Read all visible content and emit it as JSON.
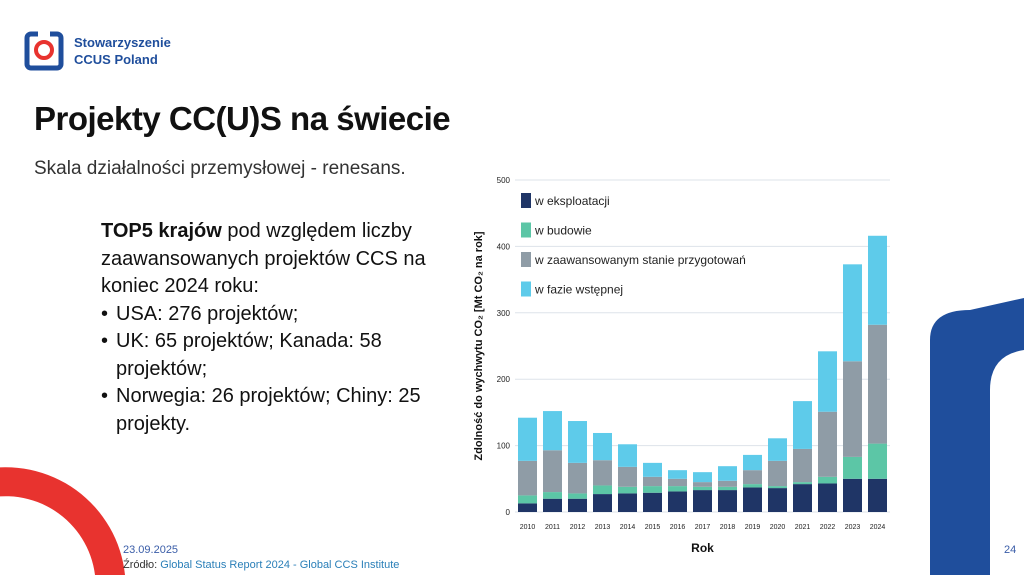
{
  "logo": {
    "line1": "Stowarzyszenie",
    "line2": "CCUS Poland"
  },
  "title": "Projekty CC(U)S na świecie",
  "subtitle": "Skala działalności przemysłowej - renesans.",
  "body": {
    "bold": "TOP5 krajów",
    "text": " pod względem liczby zaawansowanych projektów CCS na koniec 2024 roku:",
    "bullets": [
      "USA: 276 projektów;",
      "UK: 65 projektów; Kanada: 58 projektów;",
      "Norwegia: 26 projektów; Chiny: 25 projekty."
    ]
  },
  "date": "23.09.2025",
  "source": {
    "label": "Źródło: ",
    "text": "Global Status Report 2024 - Global CCS Institute"
  },
  "page_number": "24",
  "chart_data": {
    "type": "stacked_bar",
    "x_label": "Rok",
    "y_label": "Zdolność do wychwytu CO₂ [Mt CO₂ na rok]",
    "categories": [
      "2010",
      "2011",
      "2012",
      "2013",
      "2014",
      "2015",
      "2016",
      "2017",
      "2018",
      "2019",
      "2020",
      "2021",
      "2022",
      "2023",
      "2024"
    ],
    "series": [
      {
        "name": "w eksploatacji",
        "color": "#1f3566",
        "values": [
          13,
          20,
          20,
          27,
          28,
          29,
          31,
          33,
          33,
          37,
          36,
          42,
          43,
          50,
          50
        ]
      },
      {
        "name": "w budowie",
        "color": "#5cc6a6",
        "values": [
          12,
          10,
          8,
          13,
          10,
          10,
          8,
          5,
          5,
          5,
          3,
          3,
          10,
          33,
          53
        ]
      },
      {
        "name": "w zaawansowanym stanie przygotowań",
        "color": "#8f9ca6",
        "values": [
          52,
          63,
          46,
          38,
          30,
          14,
          11,
          7,
          9,
          21,
          38,
          50,
          98,
          144,
          179
        ]
      },
      {
        "name": "w fazie wstępnej",
        "color": "#5ecbea",
        "values": [
          65,
          59,
          63,
          41,
          34,
          21,
          13,
          15,
          22,
          23,
          34,
          72,
          91,
          146,
          134
        ]
      }
    ],
    "ylim": [
      0,
      500
    ],
    "yticks": [
      0,
      100,
      200,
      300,
      400,
      500
    ],
    "grid": true,
    "legend": "top-left"
  }
}
